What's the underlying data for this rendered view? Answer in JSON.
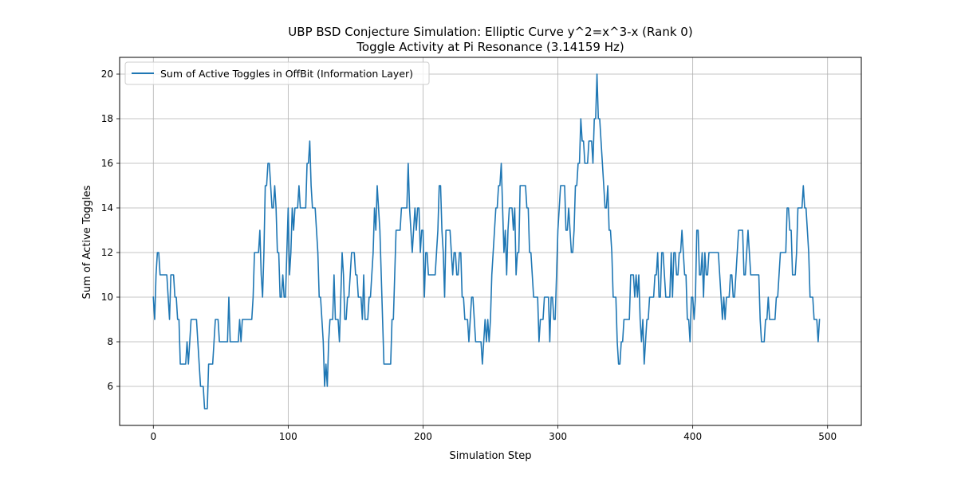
{
  "chart_data": {
    "type": "line",
    "title": "UBP BSD Conjecture Simulation: Elliptic Curve y^2=x^3-x (Rank 0)",
    "subtitle": "Toggle Activity at Pi Resonance (3.14159 Hz)",
    "xlabel": "Simulation Step",
    "ylabel": "Sum of Active Toggles",
    "xlim": [
      -25,
      525
    ],
    "ylim": [
      4.25,
      20.75
    ],
    "xticks": [
      0,
      100,
      200,
      300,
      400,
      500
    ],
    "yticks": [
      6,
      8,
      10,
      12,
      14,
      16,
      18,
      20
    ],
    "grid": true,
    "legend_position": "top-left",
    "series": [
      {
        "name": "Sum of Active Toggles in OffBit (Information Layer)",
        "color": "#1f77b4",
        "x_start": 0,
        "x_step": 1,
        "values": [
          10,
          9,
          11,
          12,
          12,
          11,
          11,
          11,
          11,
          11,
          11,
          10,
          9,
          11,
          11,
          11,
          10,
          10,
          9,
          9,
          7,
          7,
          7,
          7,
          7,
          8,
          7,
          8,
          9,
          9,
          9,
          9,
          9,
          8,
          7,
          6,
          6,
          6,
          5,
          5,
          5,
          7,
          7,
          7,
          7,
          8,
          9,
          9,
          9,
          8,
          8,
          8,
          8,
          8,
          8,
          8,
          10,
          8,
          8,
          8,
          8,
          8,
          8,
          8,
          9,
          8,
          9,
          9,
          9,
          9,
          9,
          9,
          9,
          9,
          10,
          12,
          12,
          12,
          12,
          13,
          11,
          10,
          12,
          15,
          15,
          16,
          16,
          15,
          14,
          14,
          15,
          14,
          12,
          12,
          10,
          10,
          11,
          10,
          10,
          12,
          14,
          11,
          12,
          14,
          13,
          14,
          14,
          14,
          15,
          14,
          14,
          14,
          14,
          14,
          16,
          16,
          17,
          15,
          14,
          14,
          14,
          13,
          12,
          10,
          10,
          9,
          8,
          6,
          7,
          6,
          8,
          9,
          9,
          9,
          11,
          9,
          9,
          9,
          8,
          10,
          12,
          11,
          9,
          9,
          10,
          10,
          11,
          12,
          12,
          12,
          11,
          11,
          10,
          10,
          10,
          9,
          11,
          9,
          9,
          9,
          10,
          10,
          11,
          12,
          14,
          13,
          15,
          14,
          13,
          11,
          9,
          7,
          7,
          7,
          7,
          7,
          7,
          9,
          9,
          11,
          13,
          13,
          13,
          13,
          14,
          14,
          14,
          14,
          14,
          16,
          14,
          13,
          12,
          13,
          14,
          13,
          14,
          14,
          12,
          13,
          13,
          10,
          12,
          12,
          11,
          11,
          11,
          11,
          11,
          11,
          12,
          13,
          15,
          15,
          13,
          12,
          10,
          13,
          13,
          13,
          13,
          12,
          11,
          12,
          12,
          11,
          11,
          12,
          12,
          10,
          10,
          9,
          9,
          9,
          8,
          9,
          10,
          10,
          9,
          8,
          8,
          8,
          8,
          8,
          7,
          8,
          9,
          8,
          9,
          8,
          9,
          11,
          12,
          13,
          14,
          14,
          15,
          15,
          16,
          14,
          12,
          13,
          11,
          13,
          14,
          14,
          14,
          13,
          14,
          11,
          12,
          12,
          15,
          15,
          15,
          15,
          15,
          14,
          14,
          12,
          12,
          11,
          10,
          10,
          10,
          10,
          8,
          9,
          9,
          9,
          10,
          10,
          10,
          10,
          8,
          10,
          10,
          9,
          9,
          11,
          13,
          14,
          15,
          15,
          15,
          15,
          13,
          13,
          14,
          13,
          12,
          12,
          13,
          15,
          15,
          16,
          16,
          18,
          17,
          17,
          16,
          16,
          16,
          17,
          17,
          17,
          16,
          18,
          18,
          20,
          18,
          18,
          17,
          16,
          15,
          14,
          14,
          15,
          13,
          13,
          12,
          10,
          10,
          10,
          8,
          7,
          7,
          8,
          8,
          9,
          9,
          9,
          9,
          9,
          11,
          11,
          11,
          10,
          11,
          10,
          11,
          9,
          8,
          9,
          7,
          8,
          9,
          9,
          10,
          10,
          10,
          10,
          11,
          11,
          12,
          10,
          10,
          12,
          12,
          11,
          10,
          10,
          10,
          10,
          12,
          10,
          12,
          12,
          11,
          11,
          12,
          12,
          13,
          12,
          11,
          11,
          9,
          9,
          8,
          10,
          10,
          9,
          10,
          13,
          13,
          11,
          11,
          12,
          10,
          12,
          11,
          11,
          12,
          12,
          12,
          12,
          12,
          12,
          12,
          12,
          11,
          10,
          9,
          10,
          9,
          10,
          10,
          10,
          11,
          11,
          10,
          10,
          11,
          12,
          13,
          13,
          13,
          13,
          11,
          11,
          12,
          13,
          12,
          11,
          11,
          11,
          11,
          11,
          11,
          11,
          9,
          8,
          8,
          8,
          9,
          9,
          10,
          9,
          9,
          9,
          9,
          9,
          10,
          10,
          11,
          12,
          12,
          12,
          12,
          12,
          14,
          14,
          13,
          13,
          11,
          11,
          11,
          12,
          14,
          14,
          14,
          14,
          15,
          14,
          14,
          13,
          12,
          10,
          10,
          10,
          9,
          9,
          9,
          8,
          9
        ]
      }
    ]
  }
}
